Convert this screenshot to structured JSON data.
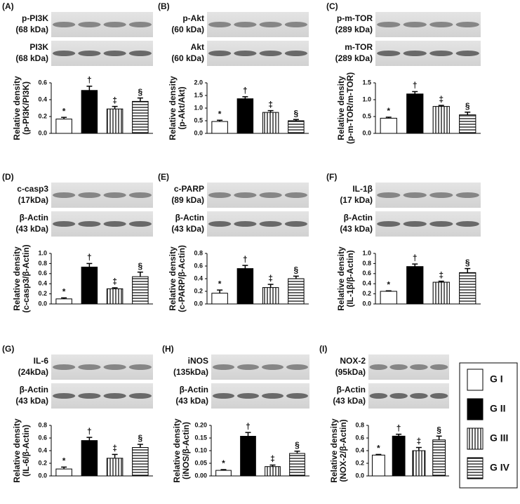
{
  "chart_data": [
    {
      "type": "bar",
      "panel": "(A)",
      "blots": [
        {
          "name": "p-PI3K",
          "size": "(68 kDa)"
        },
        {
          "name": "PI3K",
          "size": "(68 kDa)"
        }
      ],
      "ylabel": [
        "Relative density",
        "(p-PI3K/PI3K)"
      ],
      "ylim": [
        0,
        0.6
      ],
      "yticks": [
        {
          "value": 0,
          "label": "0.0"
        },
        0.2,
        0.4,
        0.6
      ],
      "values": [
        0.17,
        0.51,
        0.29,
        0.38
      ],
      "errors": [
        0.02,
        0.05,
        0.03,
        0.04
      ],
      "markers": [
        "*",
        "†",
        "‡",
        "§"
      ]
    },
    {
      "type": "bar",
      "panel": "(B)",
      "blots": [
        {
          "name": "p-Akt",
          "size": "(60 kDa)"
        },
        {
          "name": "Akt",
          "size": "(60 kDa)"
        }
      ],
      "ylabel": [
        "Relative density",
        "(p-Akt/Akt)"
      ],
      "ylim": [
        0,
        2
      ],
      "yticks": [
        {
          "value": 0,
          "label": "0.0"
        },
        0.5,
        {
          "value": 1,
          "label": "1.0"
        },
        1.5,
        {
          "value": 2,
          "label": "2.0"
        }
      ],
      "values": [
        0.47,
        1.37,
        0.83,
        0.5
      ],
      "errors": [
        0.05,
        0.08,
        0.07,
        0.05
      ],
      "markers": [
        "*",
        "†",
        "‡",
        "§"
      ]
    },
    {
      "type": "bar",
      "panel": "(C)",
      "blots": [
        {
          "name": "p-m-TOR",
          "size": "(289 kDa)"
        },
        {
          "name": "m-TOR",
          "size": "(289 kDa)"
        }
      ],
      "ylabel": [
        "Relative density",
        "(p-m-TOR/m-TOR)"
      ],
      "ylim": [
        0,
        1.5
      ],
      "yticks": [
        {
          "value": 0,
          "label": "0.0"
        },
        0.5,
        {
          "value": 1,
          "label": "1.0"
        },
        1.5
      ],
      "values": [
        0.45,
        1.17,
        0.8,
        0.55
      ],
      "errors": [
        0.03,
        0.07,
        0.03,
        0.08
      ],
      "markers": [
        "*",
        "†",
        "‡",
        "§"
      ]
    },
    {
      "type": "bar",
      "panel": "(D)",
      "blots": [
        {
          "name": "c-casp3",
          "size": "(17kDa)"
        },
        {
          "name": "β-Actin",
          "size": "(43 kDa)"
        }
      ],
      "ylabel": [
        "Relative density",
        "(c-casp3/β-Actin)"
      ],
      "ylim": [
        0,
        1
      ],
      "yticks": [
        {
          "value": 0,
          "label": "0.0"
        },
        0.2,
        0.4,
        0.6,
        0.8,
        {
          "value": 1,
          "label": "1.0"
        }
      ],
      "values": [
        0.1,
        0.73,
        0.3,
        0.54
      ],
      "errors": [
        0.02,
        0.07,
        0.02,
        0.09
      ],
      "markers": [
        "*",
        "†",
        "‡",
        "§"
      ]
    },
    {
      "type": "bar",
      "panel": "(E)",
      "blots": [
        {
          "name": "c-PARP",
          "size": "(89 kDa)"
        },
        {
          "name": "β-Actin",
          "size": "(43 kDa)"
        }
      ],
      "ylabel": [
        "Relative density",
        "(c-PARP/β-Actin)"
      ],
      "ylim": [
        0,
        0.8
      ],
      "yticks": [
        {
          "value": 0,
          "label": "0.0"
        },
        0.2,
        0.4,
        0.6,
        0.8
      ],
      "values": [
        0.17,
        0.56,
        0.26,
        0.4
      ],
      "errors": [
        0.05,
        0.05,
        0.05,
        0.04
      ],
      "markers": [
        "*",
        "†",
        "‡",
        "§"
      ]
    },
    {
      "type": "bar",
      "panel": "(F)",
      "blots": [
        {
          "name": "IL-1β",
          "size": "(17 kDa)"
        },
        {
          "name": "β-Actin",
          "size": "(43 kDa)"
        }
      ],
      "ylabel": [
        "Relative density",
        "(IL-1β/β-Actin)"
      ],
      "ylim": [
        0,
        1
      ],
      "yticks": [
        {
          "value": 0,
          "label": "0.0"
        },
        0.2,
        0.4,
        0.6,
        0.8,
        {
          "value": 1,
          "label": "1.0"
        }
      ],
      "values": [
        0.25,
        0.74,
        0.43,
        0.62
      ],
      "errors": [
        0.01,
        0.05,
        0.02,
        0.08
      ],
      "markers": [
        "*",
        "†",
        "‡",
        "§"
      ]
    },
    {
      "type": "bar",
      "panel": "(G)",
      "blots": [
        {
          "name": "IL-6",
          "size": "(24kDa)"
        },
        {
          "name": "β-Actin",
          "size": "(43 kDa)"
        }
      ],
      "ylabel": [
        "Relative density",
        "(IL-6/β-Actin)"
      ],
      "ylim": [
        0,
        0.8
      ],
      "yticks": [
        {
          "value": 0,
          "label": "0.0"
        },
        0.2,
        0.4,
        0.6,
        0.8
      ],
      "values": [
        0.11,
        0.56,
        0.28,
        0.45
      ],
      "errors": [
        0.03,
        0.05,
        0.06,
        0.05
      ],
      "markers": [
        "*",
        "†",
        "‡",
        "§"
      ]
    },
    {
      "type": "bar",
      "panel": "(H)",
      "blots": [
        {
          "name": "iNOS",
          "size": "(135kDa)"
        },
        {
          "name": "β-Actin",
          "size": "(43 kDa)"
        }
      ],
      "ylabel": [
        "Relative density",
        "(iNOS/β-Actin)"
      ],
      "ylim": [
        0,
        0.2
      ],
      "yticks": [
        {
          "value": 0,
          "label": "0.00"
        },
        0.05,
        {
          "value": 0.1,
          "label": "0.10"
        },
        0.15,
        {
          "value": 0.2,
          "label": "0.20"
        }
      ],
      "values": [
        0.022,
        0.157,
        0.037,
        0.089
      ],
      "errors": [
        0.003,
        0.015,
        0.006,
        0.009
      ],
      "markers": [
        "*",
        "†",
        "‡",
        "§"
      ]
    },
    {
      "type": "bar",
      "panel": "(I)",
      "blots": [
        {
          "name": "NOX-2",
          "size": "(95kDa)"
        },
        {
          "name": "β-Actin",
          "size": "(43 kDa)"
        }
      ],
      "ylabel": [
        "Relative density",
        "(NOX-2/β-Actin)"
      ],
      "ylim": [
        0,
        0.8
      ],
      "yticks": [
        {
          "value": 0,
          "label": "0.0"
        },
        0.2,
        0.4,
        0.6,
        0.8
      ],
      "values": [
        0.33,
        0.63,
        0.4,
        0.57
      ],
      "errors": [
        0.01,
        0.03,
        0.05,
        0.06
      ],
      "markers": [
        "*",
        "†",
        "‡",
        "§"
      ]
    }
  ],
  "legend": {
    "items": [
      {
        "name": "G I",
        "fill": "white"
      },
      {
        "name": "G II",
        "fill": "black"
      },
      {
        "name": "G III",
        "fill": "vertical"
      },
      {
        "name": "G IV",
        "fill": "horizontal"
      }
    ]
  }
}
